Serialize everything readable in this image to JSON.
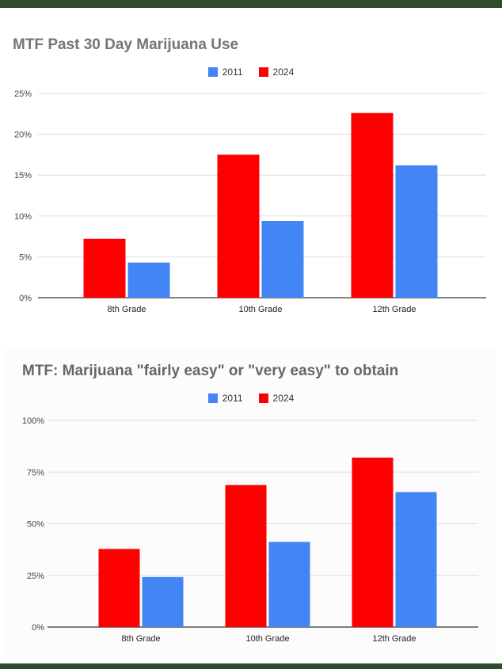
{
  "chart_data": [
    {
      "type": "bar",
      "title": "MTF Past 30 Day Marijuana Use",
      "categories": [
        "8th Grade",
        "10th Grade",
        "12th Grade"
      ],
      "series": [
        {
          "name": "2024",
          "color": "#ff0000",
          "values": [
            7.2,
            17.5,
            22.6
          ]
        },
        {
          "name": "2011",
          "color": "#4285f4",
          "values": [
            4.3,
            9.4,
            16.2
          ]
        }
      ],
      "legend_order": [
        "2011",
        "2024"
      ],
      "ylim": [
        0,
        25
      ],
      "yticks": [
        0,
        5,
        10,
        15,
        20,
        25
      ],
      "ytick_labels": [
        "0%",
        "5%",
        "10%",
        "15%",
        "20%",
        "25%"
      ],
      "grid": true,
      "legend_position": "top-center"
    },
    {
      "type": "bar",
      "title": "MTF: Marijuana \"fairly easy\" or \"very easy\" to obtain",
      "categories": [
        "8th Grade",
        "10th Grade",
        "12th Grade"
      ],
      "series": [
        {
          "name": "2024",
          "color": "#ff0000",
          "values": [
            37.8,
            68.7,
            82.0
          ]
        },
        {
          "name": "2011",
          "color": "#4285f4",
          "values": [
            24.2,
            41.2,
            65.3
          ]
        }
      ],
      "legend_order": [
        "2011",
        "2024"
      ],
      "ylim": [
        0,
        100
      ],
      "yticks": [
        0,
        25,
        50,
        75,
        100
      ],
      "ytick_labels": [
        "0%",
        "25%",
        "50%",
        "75%",
        "100%"
      ],
      "grid": true,
      "legend_position": "top-center"
    }
  ]
}
